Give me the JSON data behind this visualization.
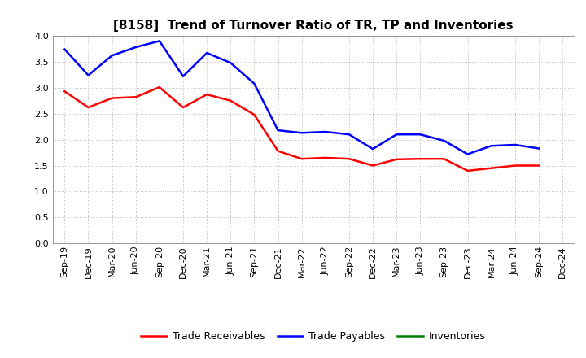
{
  "title": "[8158]  Trend of Turnover Ratio of TR, TP and Inventories",
  "x_labels": [
    "Sep-19",
    "Dec-19",
    "Mar-20",
    "Jun-20",
    "Sep-20",
    "Dec-20",
    "Mar-21",
    "Jun-21",
    "Sep-21",
    "Dec-21",
    "Mar-22",
    "Jun-22",
    "Sep-22",
    "Dec-22",
    "Mar-23",
    "Jun-23",
    "Sep-23",
    "Dec-23",
    "Mar-24",
    "Jun-24",
    "Sep-24",
    "Dec-24"
  ],
  "trade_receivables": [
    2.93,
    2.62,
    2.8,
    2.82,
    3.01,
    2.62,
    2.87,
    2.75,
    2.48,
    1.78,
    1.63,
    1.65,
    1.63,
    1.5,
    1.62,
    1.63,
    1.63,
    1.4,
    1.45,
    1.5,
    1.5,
    null
  ],
  "trade_payables": [
    3.74,
    3.24,
    3.62,
    3.78,
    3.9,
    3.22,
    3.67,
    3.48,
    3.08,
    2.18,
    2.13,
    2.15,
    2.1,
    1.82,
    2.1,
    2.1,
    1.98,
    1.72,
    1.88,
    1.9,
    1.83,
    null
  ],
  "inventories": [
    null,
    null,
    null,
    null,
    null,
    null,
    null,
    null,
    null,
    null,
    null,
    null,
    null,
    null,
    null,
    null,
    null,
    null,
    null,
    null,
    null,
    null
  ],
  "ylim": [
    0.0,
    4.0
  ],
  "yticks": [
    0.0,
    0.5,
    1.0,
    1.5,
    2.0,
    2.5,
    3.0,
    3.5,
    4.0
  ],
  "line_colors": {
    "trade_receivables": "#FF0000",
    "trade_payables": "#0000FF",
    "inventories": "#008000"
  },
  "line_width": 1.8,
  "background_color": "#FFFFFF",
  "grid_color": "#AAAAAA",
  "legend_labels": [
    "Trade Receivables",
    "Trade Payables",
    "Inventories"
  ],
  "title_fontsize": 11,
  "tick_fontsize": 8,
  "legend_fontsize": 9
}
